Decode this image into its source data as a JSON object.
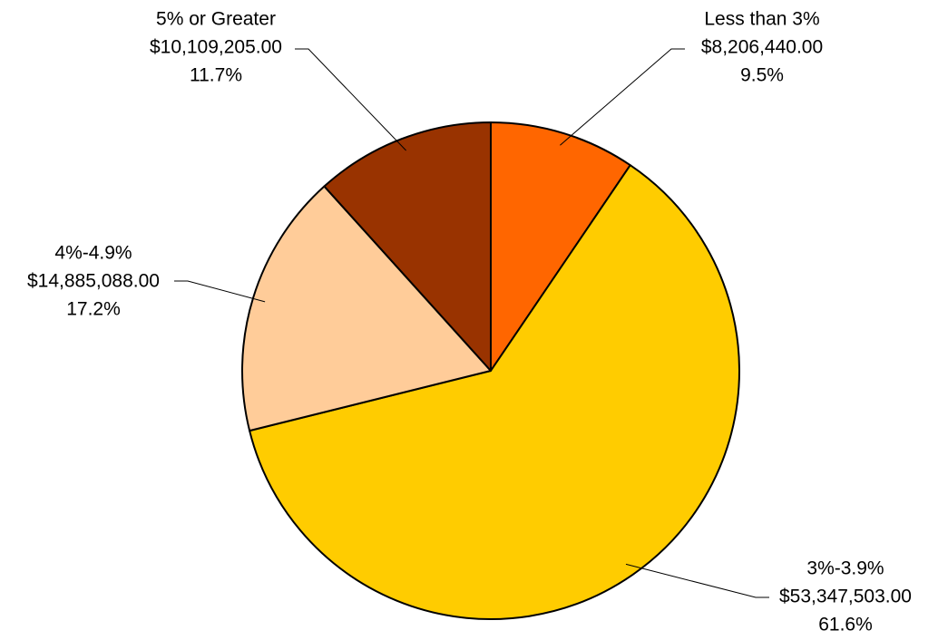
{
  "chart_data": {
    "type": "pie",
    "title": "",
    "start_angle_deg": 0,
    "direction": "clockwise",
    "slices": [
      {
        "name": "Less than 3%",
        "value": 8206440.0,
        "value_label": "$8,206,440.00",
        "percent_label": "9.5%",
        "color": "#FF6600"
      },
      {
        "name": "3%-3.9%",
        "value": 53347503.0,
        "value_label": "$53,347,503.00",
        "percent_label": "61.6%",
        "color": "#FFCC00"
      },
      {
        "name": "4%-4.9%",
        "value": 14885088.0,
        "value_label": "$14,885,088.00",
        "percent_label": "17.2%",
        "color": "#FFCC99"
      },
      {
        "name": "5% or Greater",
        "value": 10109205.0,
        "value_label": "$10,109,205.00",
        "percent_label": "11.7%",
        "color": "#993300"
      }
    ]
  }
}
